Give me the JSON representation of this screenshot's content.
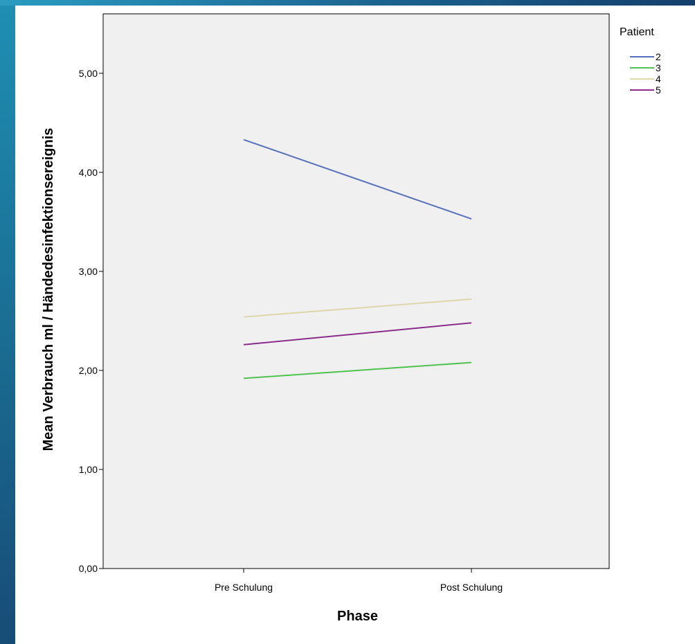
{
  "chart_data": {
    "type": "line",
    "categories": [
      "Pre Schulung",
      "Post Schulung"
    ],
    "xlabel": "Phase",
    "ylabel": "Mean Verbrauch ml / Händedesinfektionsereignis",
    "ylim": [
      0,
      5.6
    ],
    "yticks": [
      0,
      1,
      2,
      3,
      4,
      5
    ],
    "ytick_labels": [
      "0,00",
      "1,00",
      "2,00",
      "3,00",
      "4,00",
      "5,00"
    ],
    "grid": false,
    "legend": {
      "title": "Patient",
      "placement": "right"
    },
    "series": [
      {
        "name": "2",
        "values": [
          4.33,
          3.53
        ],
        "color": "#5670be"
      },
      {
        "name": "3",
        "values": [
          1.92,
          2.08
        ],
        "color": "#4fc34f"
      },
      {
        "name": "4",
        "values": [
          2.54,
          2.72
        ],
        "color": "#ded6ab"
      },
      {
        "name": "5",
        "values": [
          2.26,
          2.48
        ],
        "color": "#8a2c89"
      }
    ],
    "colors": {
      "plot_background": "#f0f0f0",
      "axis": "#000000"
    }
  }
}
